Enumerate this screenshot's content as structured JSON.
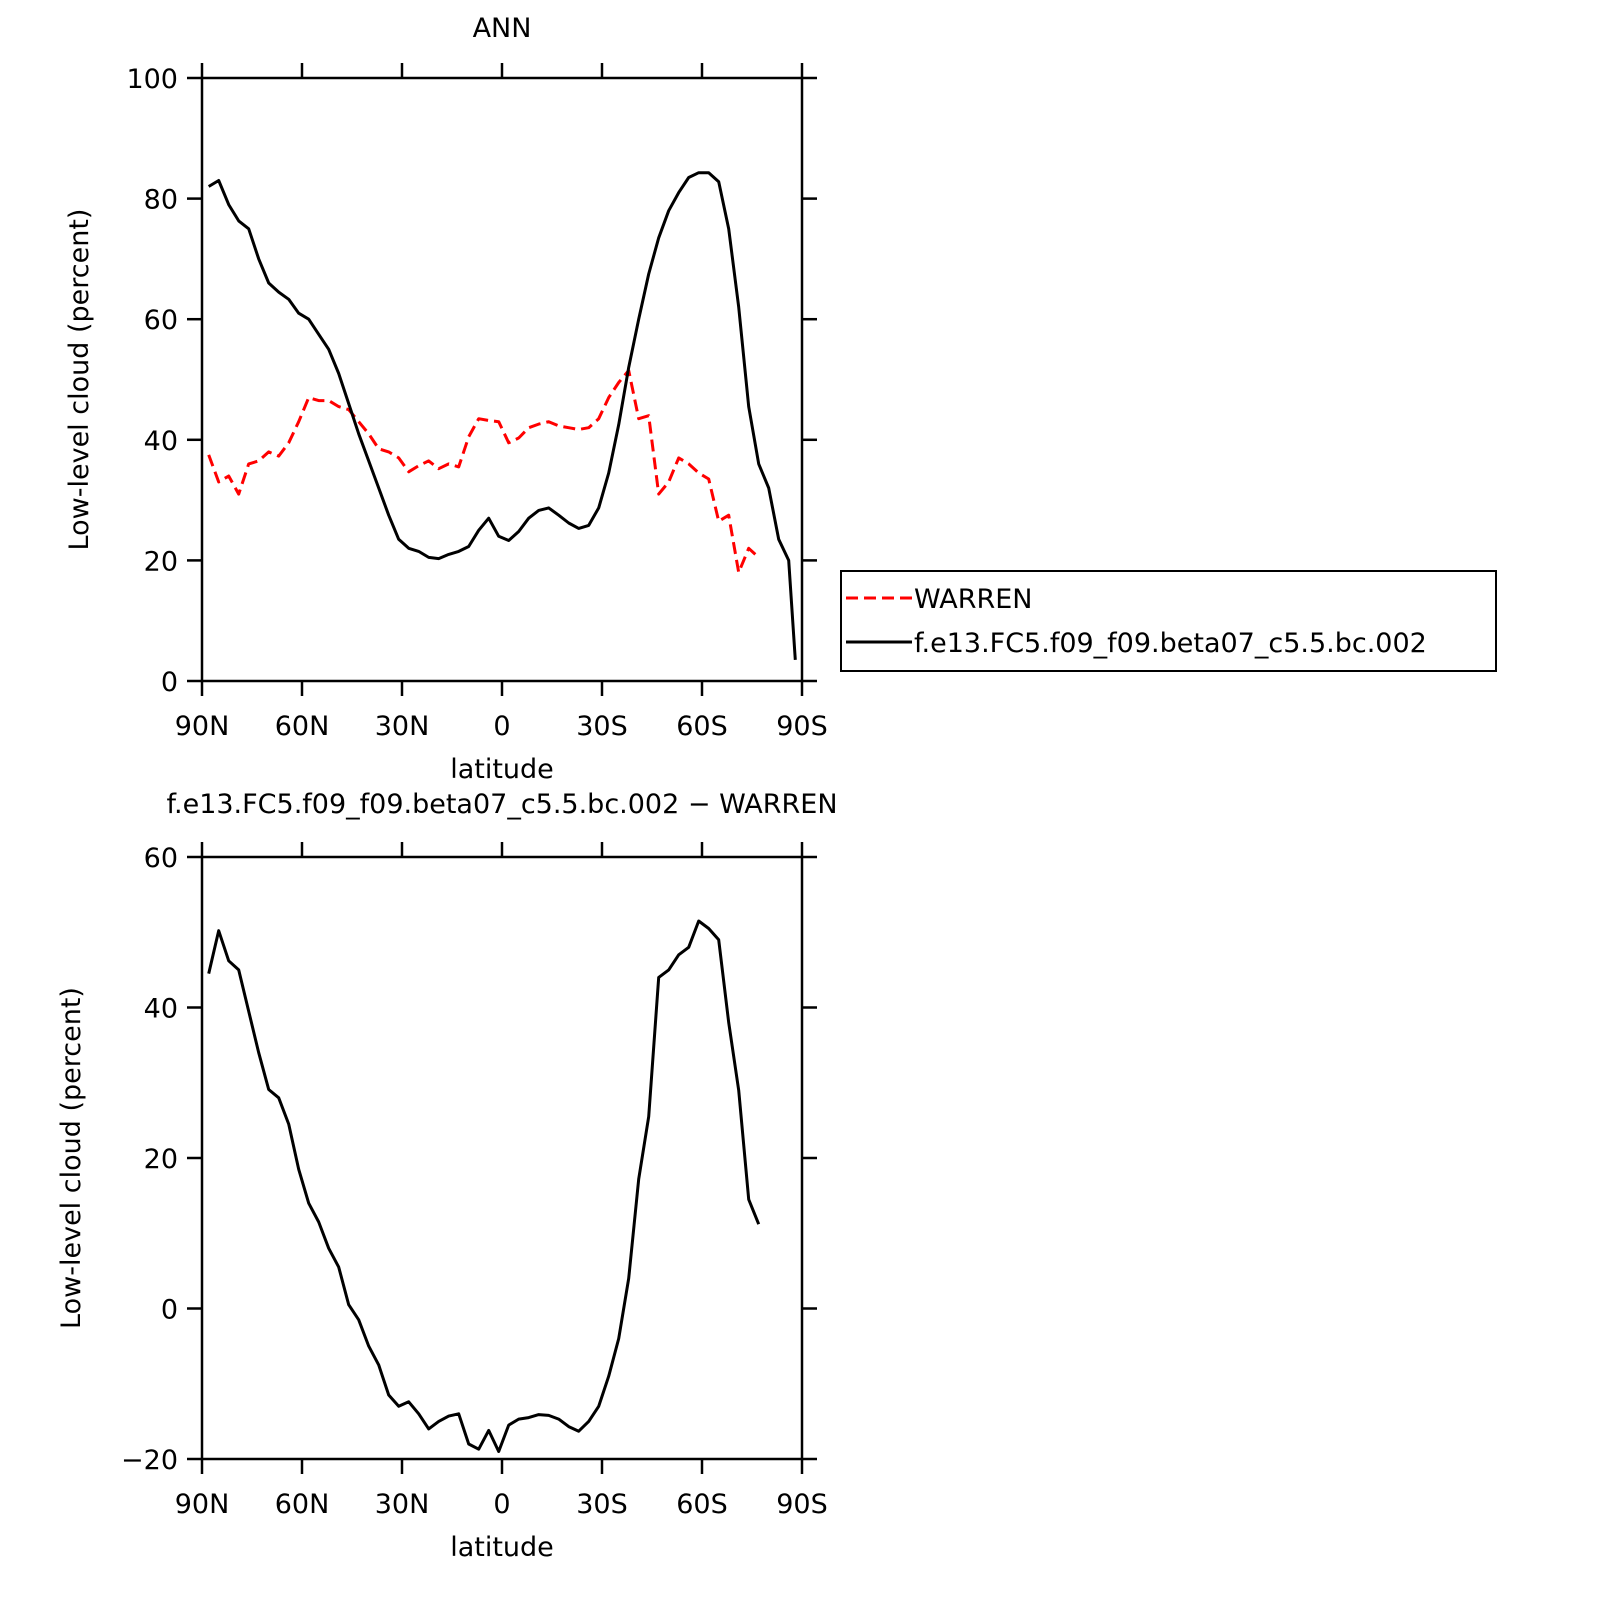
{
  "chart_data": [
    {
      "type": "line",
      "title": "ANN",
      "xlabel": "latitude",
      "ylabel": "Low-level cloud (percent)",
      "xlim": [
        90,
        -90
      ],
      "xticks": [
        {
          "value": 90,
          "label": "90N"
        },
        {
          "value": 60,
          "label": "60N"
        },
        {
          "value": 30,
          "label": "30N"
        },
        0,
        {
          "value": -30,
          "label": "30S"
        },
        {
          "value": -60,
          "label": "60S"
        },
        {
          "value": -90,
          "label": "90S"
        }
      ],
      "ylim": [
        0,
        100
      ],
      "yticks": [
        0,
        20,
        40,
        60,
        80,
        100
      ],
      "legend": "right",
      "series": [
        {
          "name": "WARREN",
          "color": "#ff0000",
          "style": "dashed",
          "x": [
            88,
            85,
            82,
            79,
            76,
            73,
            70,
            67,
            64,
            61,
            58,
            55,
            52,
            49,
            46,
            43,
            40,
            37,
            34,
            31,
            28,
            25,
            22,
            19,
            16,
            13,
            10,
            7,
            4,
            1,
            -2,
            -5,
            -8,
            -11,
            -14,
            -17,
            -20,
            -23,
            -26,
            -29,
            -32,
            -35,
            -38,
            -41,
            -44,
            -47,
            -50,
            -53,
            -56,
            -59,
            -62,
            -65,
            -68,
            -71,
            -74,
            -77
          ],
          "values": [
            37.5,
            33,
            34,
            31,
            36,
            36.5,
            38,
            37.3,
            39.5,
            43,
            47,
            46.5,
            46.5,
            45.5,
            45,
            43,
            41,
            38.5,
            38,
            37,
            34.7,
            35.7,
            36.5,
            35.2,
            36,
            35.5,
            40.5,
            43.5,
            43.2,
            43,
            39.5,
            40.3,
            42,
            42.6,
            43,
            42.3,
            42,
            41.7,
            42,
            43.5,
            47,
            49.5,
            51.5,
            43.5,
            44,
            31,
            33,
            37,
            36,
            34.5,
            33.5,
            26.5,
            27.5,
            18,
            22,
            20.5
          ]
        },
        {
          "name": "f.e13.FC5.f09_f09.beta07_c5.5.bc.002",
          "color": "#000000",
          "style": "solid",
          "x": [
            88,
            85,
            82,
            79,
            76,
            73,
            70,
            67,
            64,
            61,
            58,
            55,
            52,
            49,
            46,
            43,
            40,
            37,
            34,
            31,
            28,
            25,
            22,
            19,
            16,
            13,
            10,
            7,
            4,
            1,
            -2,
            -5,
            -8,
            -11,
            -14,
            -17,
            -20,
            -23,
            -26,
            -29,
            -32,
            -35,
            -38,
            -41,
            -44,
            -47,
            -50,
            -53,
            -56,
            -59,
            -62,
            -65,
            -68,
            -71,
            -74,
            -77,
            -80,
            -83,
            -86,
            -88
          ],
          "values": [
            82,
            83,
            79,
            76.3,
            75,
            70,
            66,
            64.5,
            63.3,
            61,
            60,
            57.5,
            55,
            51,
            46,
            41,
            36.5,
            32,
            27.5,
            23.5,
            22,
            21.5,
            20.5,
            20.3,
            21,
            21.5,
            22.3,
            25,
            27,
            24,
            23.3,
            24.8,
            27,
            28.3,
            28.7,
            27.5,
            26.2,
            25.3,
            25.8,
            28.7,
            34.5,
            42.5,
            52,
            60,
            67.5,
            73.5,
            78,
            81,
            83.5,
            84.3,
            84.3,
            82.8,
            75,
            62,
            45.5,
            36,
            32,
            23.5,
            20,
            3.5
          ]
        }
      ]
    },
    {
      "type": "line",
      "title": "f.e13.FC5.f09_f09.beta07_c5.5.bc.002 − WARREN",
      "xlabel": "latitude",
      "ylabel": "Low-level cloud (percent)",
      "xlim": [
        90,
        -90
      ],
      "xticks": [
        {
          "value": 90,
          "label": "90N"
        },
        {
          "value": 60,
          "label": "60N"
        },
        {
          "value": 30,
          "label": "30N"
        },
        0,
        {
          "value": -30,
          "label": "30S"
        },
        {
          "value": -60,
          "label": "60S"
        },
        {
          "value": -90,
          "label": "90S"
        }
      ],
      "ylim": [
        -20,
        60
      ],
      "yticks": [
        {
          "value": -20,
          "label": "−20"
        },
        0,
        20,
        40,
        60
      ],
      "series": [
        {
          "color": "#000000",
          "style": "solid",
          "x": [
            88,
            85,
            82,
            79,
            76,
            73,
            70,
            67,
            64,
            61,
            58,
            55,
            52,
            49,
            46,
            43,
            40,
            37,
            34,
            31,
            28,
            25,
            22,
            19,
            16,
            13,
            10,
            7,
            4,
            1,
            -2,
            -5,
            -8,
            -11,
            -14,
            -17,
            -20,
            -23,
            -26,
            -29,
            -32,
            -35,
            -38,
            -41,
            -44,
            -47,
            -50,
            -53,
            -56,
            -59,
            -62,
            -65,
            -68,
            -71,
            -74,
            -77
          ],
          "values": [
            44.5,
            50.2,
            46.2,
            45,
            39.5,
            34,
            29.1,
            28,
            24.5,
            18.5,
            14,
            11.5,
            8,
            5.5,
            0.5,
            -1.5,
            -5,
            -7.5,
            -11.5,
            -13,
            -12.4,
            -14,
            -16,
            -15,
            -14.3,
            -14,
            -18,
            -18.7,
            -16.2,
            -19,
            -15.5,
            -14.7,
            -14.5,
            -14.1,
            -14.2,
            -14.7,
            -15.7,
            -16.3,
            -15,
            -13,
            -9,
            -4,
            4,
            17.2,
            25.5,
            44,
            45,
            47,
            48,
            51.5,
            50.5,
            49,
            38,
            29,
            14.5,
            11.2
          ]
        }
      ]
    }
  ]
}
